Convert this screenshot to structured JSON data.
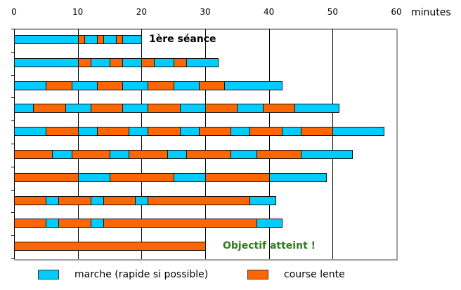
{
  "chart_data": {
    "type": "bar",
    "orientation": "horizontal-stacked-timeline",
    "title": "",
    "xlabel": "minutes",
    "ylabel": "",
    "xlim": [
      0,
      60
    ],
    "x_ticks": [
      0,
      10,
      20,
      30,
      40,
      50,
      60
    ],
    "grid": true,
    "legend_position": "bottom",
    "series": [
      {
        "name": "marche (rapide si possible)",
        "key": "walk",
        "color": "#00CCFF"
      },
      {
        "name": "course lente",
        "key": "run",
        "color": "#FF6600"
      }
    ],
    "rows": [
      {
        "session": 1,
        "total": 20,
        "segments": [
          {
            "type": "walk",
            "start": 0,
            "end": 10
          },
          {
            "type": "run",
            "start": 10,
            "end": 11
          },
          {
            "type": "walk",
            "start": 11,
            "end": 13
          },
          {
            "type": "run",
            "start": 13,
            "end": 14
          },
          {
            "type": "walk",
            "start": 14,
            "end": 16
          },
          {
            "type": "run",
            "start": 16,
            "end": 17
          },
          {
            "type": "walk",
            "start": 17,
            "end": 20
          }
        ]
      },
      {
        "session": 2,
        "total": 32,
        "segments": [
          {
            "type": "walk",
            "start": 0,
            "end": 10
          },
          {
            "type": "run",
            "start": 10,
            "end": 12
          },
          {
            "type": "walk",
            "start": 12,
            "end": 15
          },
          {
            "type": "run",
            "start": 15,
            "end": 17
          },
          {
            "type": "walk",
            "start": 17,
            "end": 20
          },
          {
            "type": "run",
            "start": 20,
            "end": 22
          },
          {
            "type": "walk",
            "start": 22,
            "end": 25
          },
          {
            "type": "run",
            "start": 25,
            "end": 27
          },
          {
            "type": "walk",
            "start": 27,
            "end": 32
          }
        ]
      },
      {
        "session": 3,
        "total": 42,
        "segments": [
          {
            "type": "walk",
            "start": 0,
            "end": 5
          },
          {
            "type": "run",
            "start": 5,
            "end": 9
          },
          {
            "type": "walk",
            "start": 9,
            "end": 13
          },
          {
            "type": "run",
            "start": 13,
            "end": 17
          },
          {
            "type": "walk",
            "start": 17,
            "end": 21
          },
          {
            "type": "run",
            "start": 21,
            "end": 25
          },
          {
            "type": "walk",
            "start": 25,
            "end": 29
          },
          {
            "type": "run",
            "start": 29,
            "end": 33
          },
          {
            "type": "walk",
            "start": 33,
            "end": 42
          }
        ]
      },
      {
        "session": 4,
        "total": 51,
        "segments": [
          {
            "type": "walk",
            "start": 0,
            "end": 3
          },
          {
            "type": "run",
            "start": 3,
            "end": 8
          },
          {
            "type": "walk",
            "start": 8,
            "end": 12
          },
          {
            "type": "run",
            "start": 12,
            "end": 17
          },
          {
            "type": "walk",
            "start": 17,
            "end": 21
          },
          {
            "type": "run",
            "start": 21,
            "end": 26
          },
          {
            "type": "walk",
            "start": 26,
            "end": 30
          },
          {
            "type": "run",
            "start": 30,
            "end": 35
          },
          {
            "type": "walk",
            "start": 35,
            "end": 39
          },
          {
            "type": "run",
            "start": 39,
            "end": 44
          },
          {
            "type": "walk",
            "start": 44,
            "end": 51
          }
        ]
      },
      {
        "session": 5,
        "total": 58,
        "segments": [
          {
            "type": "walk",
            "start": 0,
            "end": 5
          },
          {
            "type": "run",
            "start": 5,
            "end": 10
          },
          {
            "type": "walk",
            "start": 10,
            "end": 13
          },
          {
            "type": "run",
            "start": 13,
            "end": 18
          },
          {
            "type": "walk",
            "start": 18,
            "end": 21
          },
          {
            "type": "run",
            "start": 21,
            "end": 26
          },
          {
            "type": "walk",
            "start": 26,
            "end": 29
          },
          {
            "type": "run",
            "start": 29,
            "end": 34
          },
          {
            "type": "walk",
            "start": 34,
            "end": 37
          },
          {
            "type": "run",
            "start": 37,
            "end": 42
          },
          {
            "type": "walk",
            "start": 42,
            "end": 45
          },
          {
            "type": "run",
            "start": 45,
            "end": 50
          },
          {
            "type": "walk",
            "start": 50,
            "end": 58
          }
        ]
      },
      {
        "session": 6,
        "total": 53,
        "segments": [
          {
            "type": "run",
            "start": 0,
            "end": 6
          },
          {
            "type": "walk",
            "start": 6,
            "end": 9
          },
          {
            "type": "run",
            "start": 9,
            "end": 15
          },
          {
            "type": "walk",
            "start": 15,
            "end": 18
          },
          {
            "type": "run",
            "start": 18,
            "end": 24
          },
          {
            "type": "walk",
            "start": 24,
            "end": 27
          },
          {
            "type": "run",
            "start": 27,
            "end": 34
          },
          {
            "type": "walk",
            "start": 34,
            "end": 38
          },
          {
            "type": "run",
            "start": 38,
            "end": 45
          },
          {
            "type": "walk",
            "start": 45,
            "end": 53
          }
        ]
      },
      {
        "session": 7,
        "total": 49,
        "segments": [
          {
            "type": "run",
            "start": 0,
            "end": 10
          },
          {
            "type": "walk",
            "start": 10,
            "end": 15
          },
          {
            "type": "run",
            "start": 15,
            "end": 25
          },
          {
            "type": "walk",
            "start": 25,
            "end": 30
          },
          {
            "type": "run",
            "start": 30,
            "end": 40
          },
          {
            "type": "walk",
            "start": 40,
            "end": 49
          }
        ]
      },
      {
        "session": 8,
        "total": 41,
        "segments": [
          {
            "type": "run",
            "start": 0,
            "end": 5
          },
          {
            "type": "walk",
            "start": 5,
            "end": 7
          },
          {
            "type": "run",
            "start": 7,
            "end": 12
          },
          {
            "type": "walk",
            "start": 12,
            "end": 14
          },
          {
            "type": "run",
            "start": 14,
            "end": 19
          },
          {
            "type": "walk",
            "start": 19,
            "end": 21
          },
          {
            "type": "run",
            "start": 21,
            "end": 37
          },
          {
            "type": "walk",
            "start": 37,
            "end": 41
          }
        ]
      },
      {
        "session": 9,
        "total": 42,
        "segments": [
          {
            "type": "run",
            "start": 0,
            "end": 5
          },
          {
            "type": "walk",
            "start": 5,
            "end": 7
          },
          {
            "type": "run",
            "start": 7,
            "end": 12
          },
          {
            "type": "walk",
            "start": 12,
            "end": 14
          },
          {
            "type": "run",
            "start": 14,
            "end": 38
          },
          {
            "type": "walk",
            "start": 38,
            "end": 42
          }
        ]
      },
      {
        "session": 10,
        "total": 30,
        "segments": [
          {
            "type": "run",
            "start": 0,
            "end": 30
          }
        ]
      }
    ],
    "annotations": [
      {
        "text": "1ère séance",
        "row": 1,
        "x_minutes": 23,
        "color": "#000000"
      },
      {
        "text": "Objectif atteint !",
        "row": 10,
        "x_minutes": 33,
        "color": "#2E7D1E"
      }
    ]
  },
  "axis": {
    "unit_label": "minutes",
    "tick_labels": [
      "0",
      "10",
      "20",
      "30",
      "40",
      "50",
      "60"
    ]
  },
  "annotations": {
    "first_session": "1ère séance",
    "goal_reached": "Objectif atteint !"
  },
  "legend": {
    "walk_label": "marche (rapide si possible)",
    "run_label": "course lente",
    "walk_color": "#00CCFF",
    "run_color": "#FF6600"
  }
}
